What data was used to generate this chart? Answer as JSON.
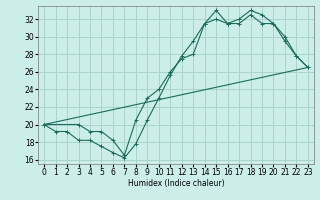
{
  "title": "",
  "xlabel": "Humidex (Indice chaleur)",
  "background_color": "#cceee8",
  "grid_color": "#aad4ce",
  "line_color": "#1a6b5a",
  "xlim": [
    -0.5,
    23.5
  ],
  "ylim": [
    15.5,
    33.5
  ],
  "xticks": [
    0,
    1,
    2,
    3,
    4,
    5,
    6,
    7,
    8,
    9,
    10,
    11,
    12,
    13,
    14,
    15,
    16,
    17,
    18,
    19,
    20,
    21,
    22,
    23
  ],
  "yticks": [
    16,
    18,
    20,
    22,
    24,
    26,
    28,
    30,
    32
  ],
  "line1_x": [
    0,
    1,
    2,
    3,
    4,
    5,
    6,
    7,
    8,
    9,
    10,
    11,
    12,
    13,
    14,
    15,
    16,
    17,
    18,
    19,
    20,
    21,
    22,
    23
  ],
  "line1_y": [
    20.0,
    19.2,
    19.2,
    18.2,
    18.2,
    17.5,
    16.8,
    16.2,
    17.8,
    20.5,
    23.0,
    25.6,
    27.8,
    29.5,
    31.5,
    33.0,
    31.5,
    31.5,
    32.5,
    31.5,
    31.5,
    29.5,
    27.8,
    26.5
  ],
  "line2_x": [
    0,
    3,
    4,
    5,
    6,
    7,
    8,
    9,
    10,
    11,
    12,
    13,
    14,
    15,
    16,
    17,
    18,
    19,
    20,
    21,
    22,
    23
  ],
  "line2_y": [
    20.0,
    20.0,
    19.2,
    19.2,
    18.2,
    16.5,
    20.5,
    23.0,
    24.0,
    26.0,
    27.5,
    28.0,
    31.5,
    32.0,
    31.5,
    32.0,
    33.0,
    32.5,
    31.5,
    30.0,
    27.8,
    26.5
  ],
  "line3_x": [
    0,
    23
  ],
  "line3_y": [
    20.0,
    26.5
  ]
}
